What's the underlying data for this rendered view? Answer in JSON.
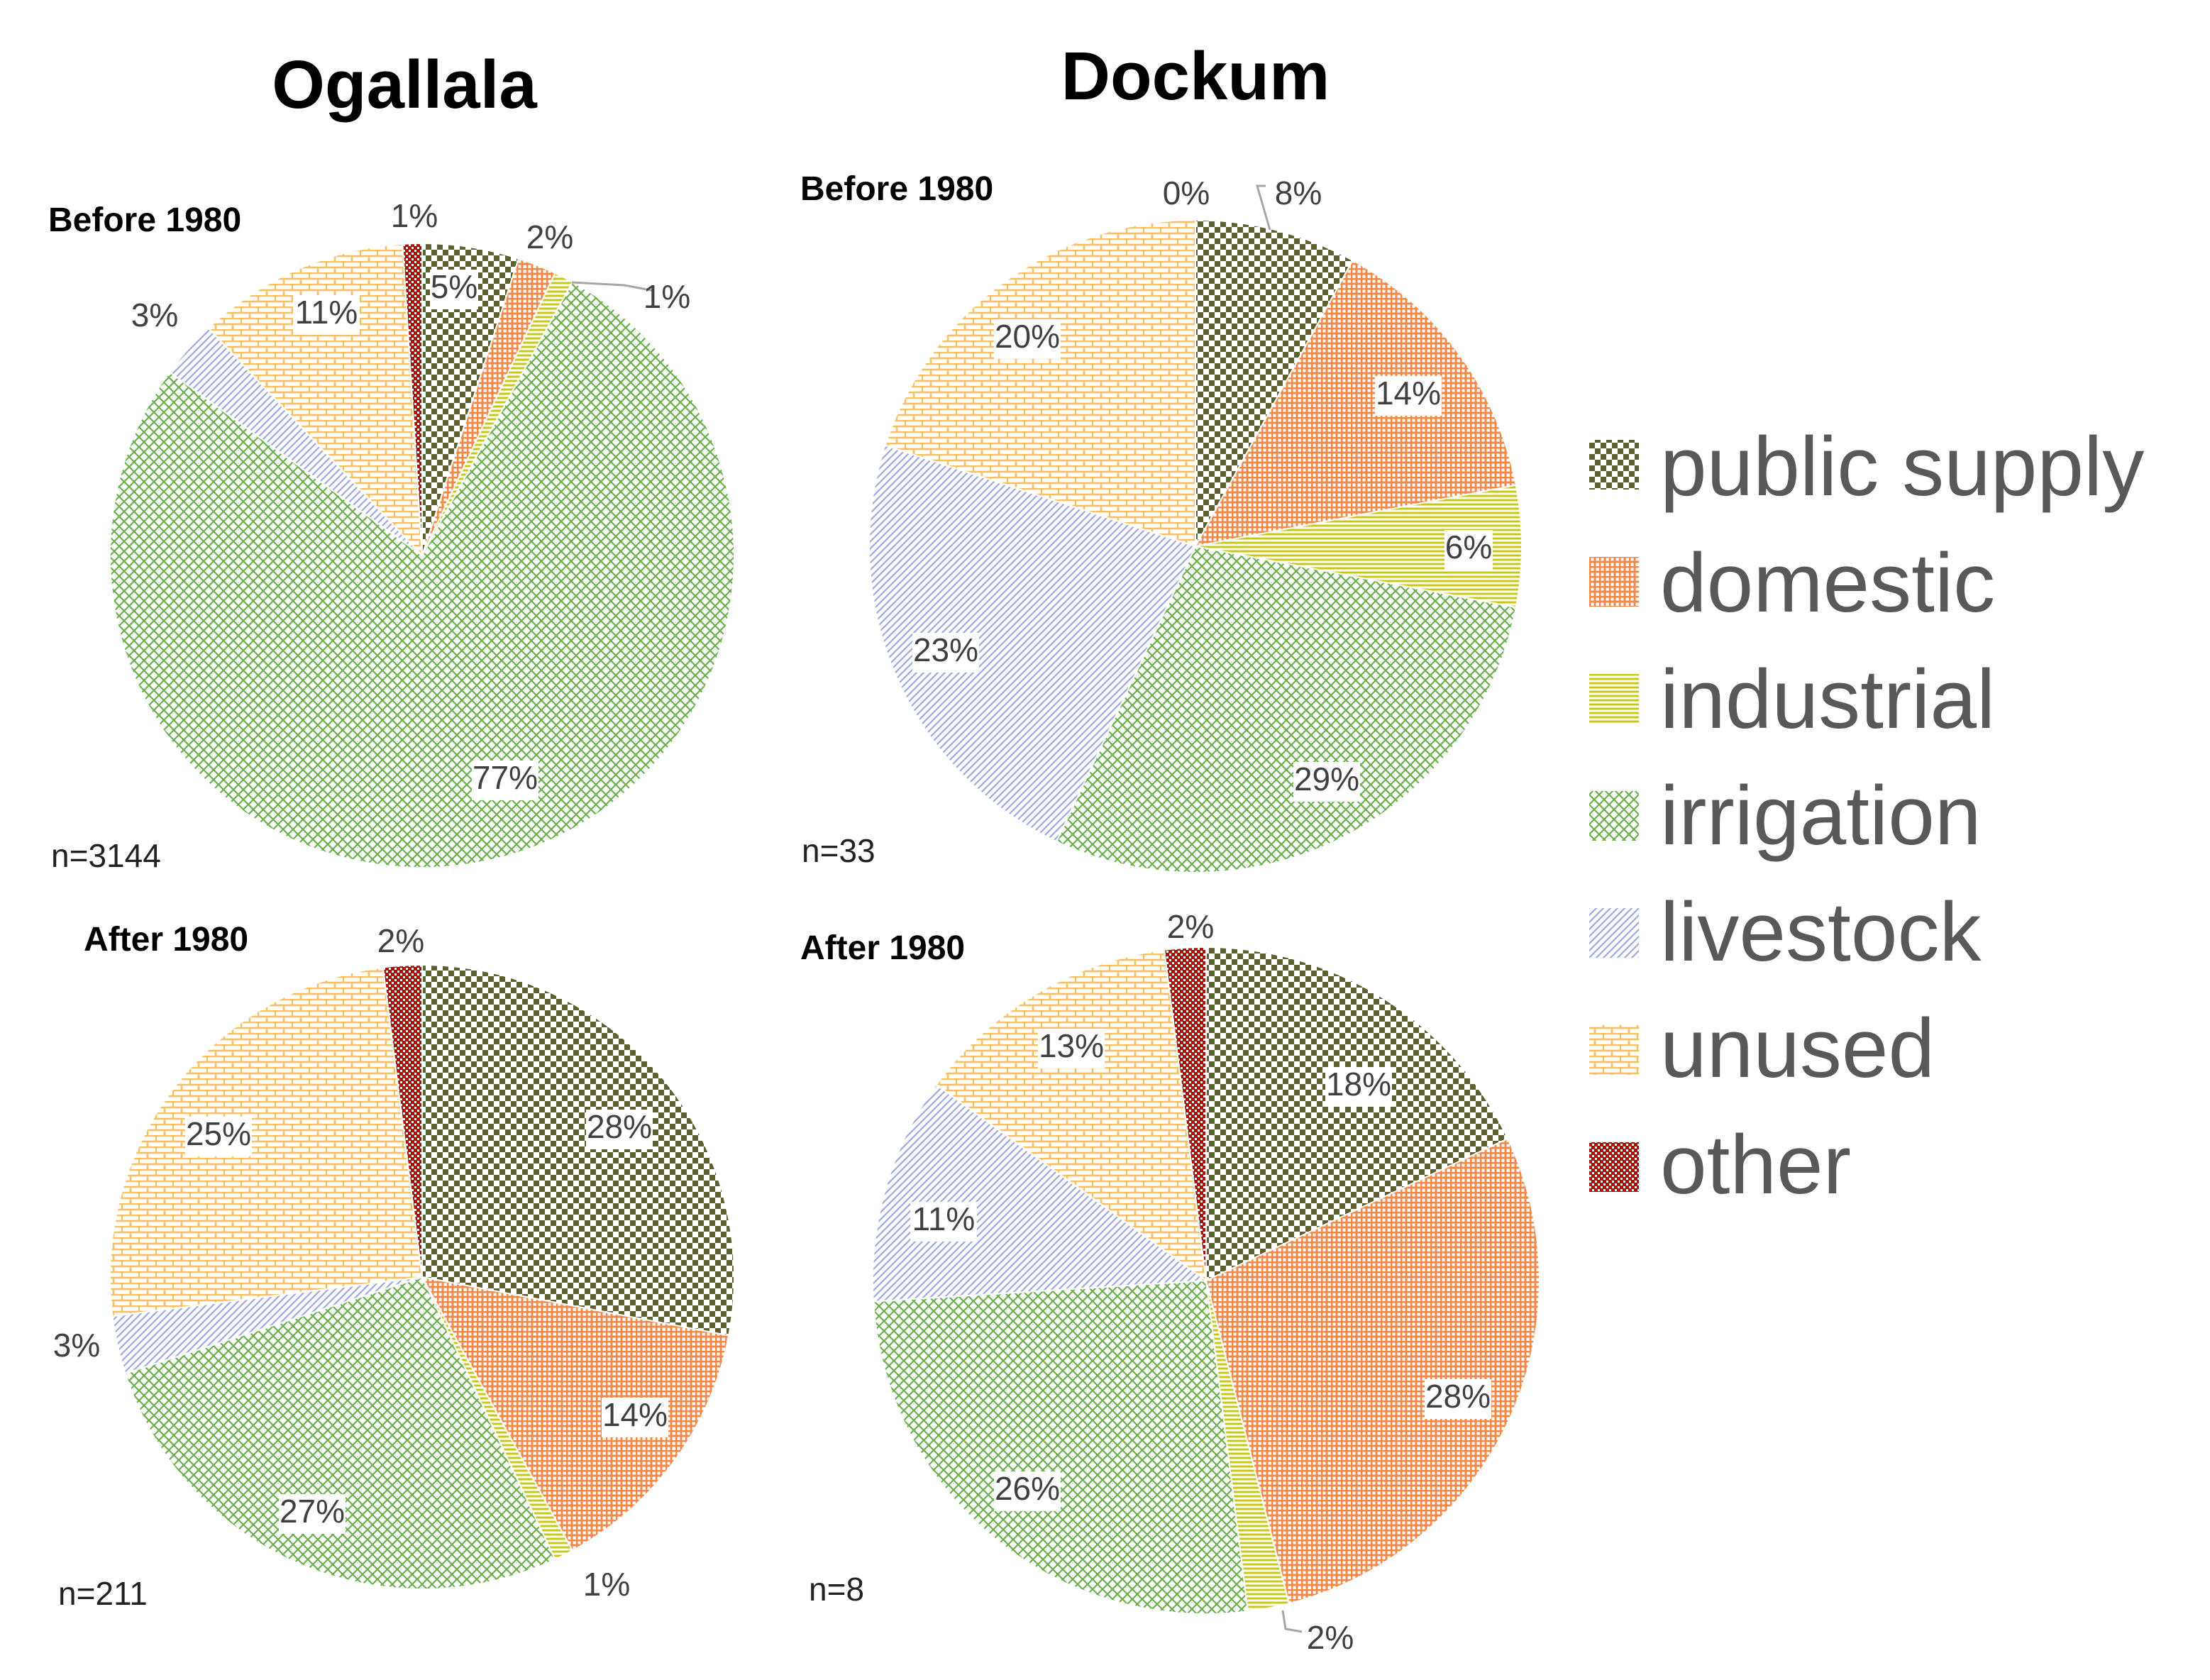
{
  "chart_data": {
    "type": "pie",
    "aquifers": [
      "Ogallala",
      "Dockum"
    ],
    "colors": {
      "public supply": "#5e6030",
      "domestic": "#f08a4b",
      "industrial": "#c8c814",
      "irrigation": "#6ab04c",
      "livestock": "#9fa8e0",
      "unused": "#f5c060",
      "other": "#c00000"
    },
    "legend": [
      "public supply",
      "domestic",
      "industrial",
      "irrigation",
      "livestock",
      "unused",
      "other"
    ],
    "charts": [
      {
        "aquifer": "Ogallala",
        "period": "Before 1980",
        "n": "n=3144",
        "slices": [
          {
            "category": "public supply",
            "value": 5,
            "label": "5%"
          },
          {
            "category": "domestic",
            "value": 2,
            "label": "2%"
          },
          {
            "category": "industrial",
            "value": 1,
            "label": "1%"
          },
          {
            "category": "irrigation",
            "value": 77,
            "label": "77%"
          },
          {
            "category": "livestock",
            "value": 3,
            "label": "3%"
          },
          {
            "category": "unused",
            "value": 11,
            "label": "11%"
          },
          {
            "category": "other",
            "value": 1,
            "label": "1%"
          }
        ]
      },
      {
        "aquifer": "Dockum",
        "period": "Before 1980",
        "n": "n=33",
        "slices": [
          {
            "category": "public supply",
            "value": 8,
            "label": "8%"
          },
          {
            "category": "domestic",
            "value": 14,
            "label": "14%"
          },
          {
            "category": "industrial",
            "value": 6,
            "label": "6%"
          },
          {
            "category": "irrigation",
            "value": 29,
            "label": "29%"
          },
          {
            "category": "livestock",
            "value": 23,
            "label": "23%"
          },
          {
            "category": "unused",
            "value": 20,
            "label": "20%"
          },
          {
            "category": "other",
            "value": 0,
            "label": "0%"
          }
        ]
      },
      {
        "aquifer": "Ogallala",
        "period": "After 1980",
        "n": "n=211",
        "slices": [
          {
            "category": "public supply",
            "value": 28,
            "label": "28%"
          },
          {
            "category": "domestic",
            "value": 14,
            "label": "14%"
          },
          {
            "category": "industrial",
            "value": 1,
            "label": "1%"
          },
          {
            "category": "irrigation",
            "value": 27,
            "label": "27%"
          },
          {
            "category": "livestock",
            "value": 3,
            "label": "3%"
          },
          {
            "category": "unused",
            "value": 25,
            "label": "25%"
          },
          {
            "category": "other",
            "value": 2,
            "label": "2%"
          }
        ]
      },
      {
        "aquifer": "Dockum",
        "period": "After 1980",
        "n": "n=8",
        "slices": [
          {
            "category": "public supply",
            "value": 18,
            "label": "18%"
          },
          {
            "category": "domestic",
            "value": 28,
            "label": "28%"
          },
          {
            "category": "industrial",
            "value": 2,
            "label": "2%"
          },
          {
            "category": "irrigation",
            "value": 26,
            "label": "26%"
          },
          {
            "category": "livestock",
            "value": 11,
            "label": "11%"
          },
          {
            "category": "unused",
            "value": 13,
            "label": "13%"
          },
          {
            "category": "other",
            "value": 2,
            "label": "2%"
          }
        ]
      }
    ]
  }
}
